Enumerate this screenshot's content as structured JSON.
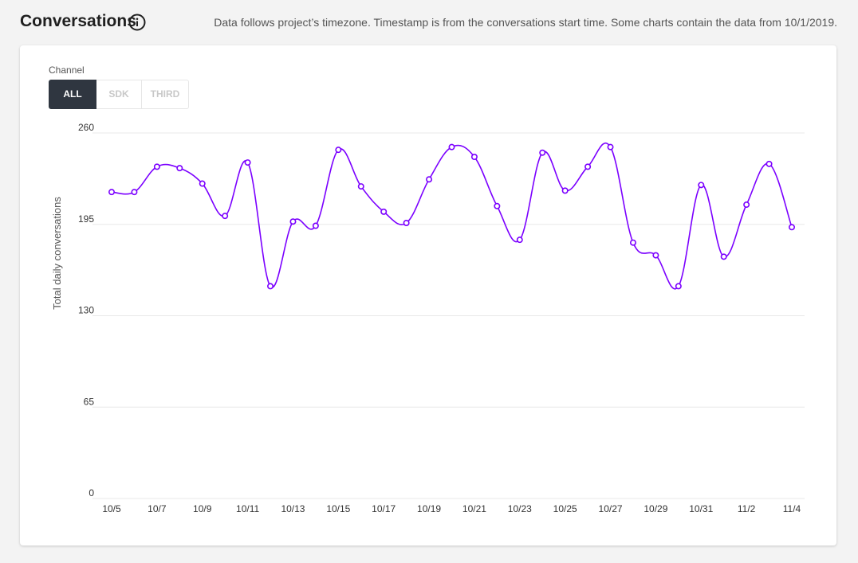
{
  "header": {
    "title": "Conversations",
    "note": "Data follows project’s timezone. Timestamp is from the conversations start time. Some charts contain the data from 10/1/2019."
  },
  "filters": {
    "channel_label": "Channel",
    "channels": [
      {
        "label": "ALL",
        "active": true
      },
      {
        "label": "SDK",
        "active": false
      },
      {
        "label": "THIRD",
        "active": false
      }
    ]
  },
  "colors": {
    "line": "#7b00ff",
    "active_button": "#2f3640",
    "gridline": "#e8e8e8"
  },
  "chart_data": {
    "type": "line",
    "title": "",
    "xlabel": "",
    "ylabel": "Total daily conversations",
    "ylim": [
      0,
      260
    ],
    "yticks": [
      0,
      65,
      130,
      195,
      260
    ],
    "grid": true,
    "x": [
      "10/5",
      "10/6",
      "10/7",
      "10/8",
      "10/9",
      "10/10",
      "10/11",
      "10/12",
      "10/13",
      "10/14",
      "10/15",
      "10/16",
      "10/17",
      "10/18",
      "10/19",
      "10/20",
      "10/21",
      "10/22",
      "10/23",
      "10/24",
      "10/25",
      "10/26",
      "10/27",
      "10/28",
      "10/29",
      "10/30",
      "10/31",
      "11/1",
      "11/2",
      "11/3",
      "11/4"
    ],
    "xtick_labels": [
      "10/5",
      "10/7",
      "10/9",
      "10/11",
      "10/13",
      "10/15",
      "10/17",
      "10/19",
      "10/21",
      "10/23",
      "10/25",
      "10/27",
      "10/29",
      "10/31",
      "11/2",
      "11/4"
    ],
    "series": [
      {
        "values": [
          218,
          218,
          236,
          235,
          224,
          201,
          239,
          151,
          197,
          194,
          248,
          222,
          204,
          196,
          227,
          250,
          243,
          208,
          184,
          246,
          219,
          236,
          250,
          182,
          173,
          151,
          223,
          172,
          209,
          238,
          193
        ]
      }
    ]
  }
}
